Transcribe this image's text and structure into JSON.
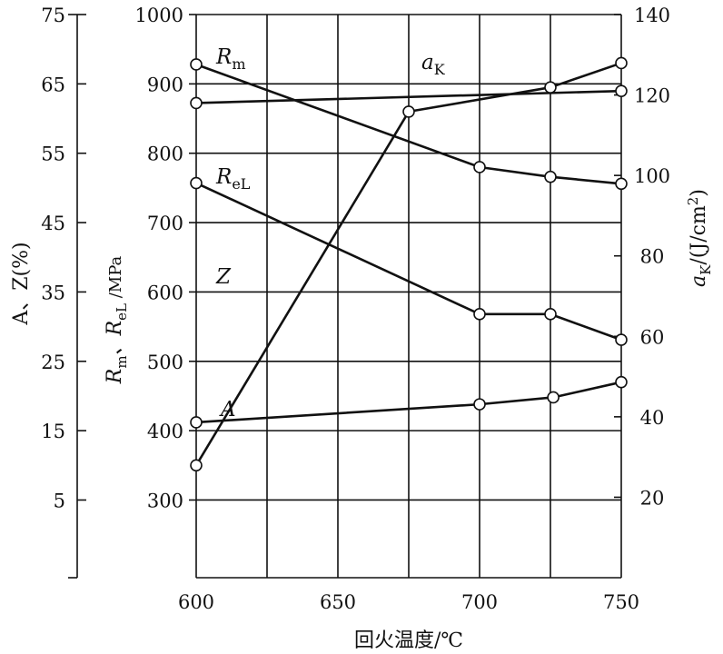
{
  "chart_data": {
    "type": "line",
    "xlabel": "回火温度/℃",
    "x_ticks": [
      "600",
      "650",
      "700",
      "750"
    ],
    "xlim": [
      600,
      750
    ],
    "axes": {
      "left_outer": {
        "label": "A、Z(%)",
        "ticks": [
          "5",
          "15",
          "25",
          "35",
          "45",
          "55",
          "65",
          "75"
        ],
        "range": [
          -6.2,
          75
        ]
      },
      "left_inner": {
        "label_main": "R",
        "label_sub1": "m",
        "label_mid": "、R",
        "label_sub2": "eL",
        "label_unit": " /MPa",
        "ticks": [
          "300",
          "400",
          "500",
          "600",
          "700",
          "800",
          "900",
          "1000"
        ],
        "range": [
          188,
          1000
        ]
      },
      "right": {
        "label_main": "a",
        "label_sub": "K",
        "label_unit": "/(J/cm",
        "label_sup": "2",
        "label_end": ")",
        "ticks": [
          "20",
          "40",
          "60",
          "80",
          "100",
          "120",
          "140"
        ],
        "range": [
          0,
          140
        ]
      }
    },
    "series": [
      {
        "name": "Rm",
        "label_main": "R",
        "label_sub": "m",
        "axis": "left_inner",
        "x": [
          600,
          700,
          725,
          750
        ],
        "y": [
          928,
          780,
          766,
          756
        ]
      },
      {
        "name": "ReL",
        "label_main": "R",
        "label_sub": "eL",
        "axis": "left_inner",
        "x": [
          600,
          700,
          725,
          750
        ],
        "y": [
          757,
          568,
          568,
          531
        ]
      },
      {
        "name": "Z",
        "label_main": "Z",
        "label_sub": "",
        "axis": "left_outer",
        "x": [
          600,
          675,
          725,
          750
        ],
        "y": [
          10,
          61,
          64.5,
          68
        ]
      },
      {
        "name": "A",
        "label_main": "A",
        "label_sub": "",
        "axis": "left_outer",
        "x": [
          600,
          700,
          726,
          750
        ],
        "y": [
          16.2,
          18.8,
          19.8,
          22
        ]
      },
      {
        "name": "aK",
        "label_main": "a",
        "label_sub": "K",
        "axis": "right",
        "x": [
          600,
          750
        ],
        "y": [
          118,
          121
        ]
      }
    ]
  }
}
